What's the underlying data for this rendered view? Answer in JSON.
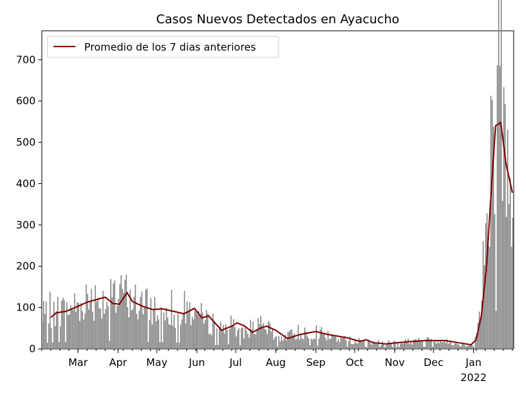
{
  "chart_data": {
    "type": "bar",
    "title": "Casos Nuevos Detectados en Ayacucho",
    "xlabel": "",
    "ylabel": "",
    "x_range": [
      "2021-02-01",
      "2022-02-01"
    ],
    "ylim": [
      0,
      770
    ],
    "y_ticks": [
      0,
      100,
      200,
      300,
      400,
      500,
      600,
      700
    ],
    "x_ticks": [
      {
        "date": "2021-03-01",
        "label": "Mar"
      },
      {
        "date": "2021-04-01",
        "label": "Apr"
      },
      {
        "date": "2021-05-01",
        "label": "May"
      },
      {
        "date": "2021-06-01",
        "label": "Jun"
      },
      {
        "date": "2021-07-01",
        "label": "Jul"
      },
      {
        "date": "2021-08-01",
        "label": "Aug"
      },
      {
        "date": "2021-09-01",
        "label": "Sep"
      },
      {
        "date": "2021-10-01",
        "label": "Oct"
      },
      {
        "date": "2021-11-01",
        "label": "Nov"
      },
      {
        "date": "2021-12-01",
        "label": "Dec"
      },
      {
        "date": "2022-01-01",
        "label": "Jan",
        "sublabel": "2022"
      }
    ],
    "grid": false,
    "legend_position": "top-left",
    "bar_color": "#808080",
    "line_color": "#800000",
    "daily_cases_breakpoints": [
      [
        "2021-02-01",
        80
      ],
      [
        "2021-02-15",
        95
      ],
      [
        "2021-03-01",
        105
      ],
      [
        "2021-03-10",
        125
      ],
      [
        "2021-03-20",
        120
      ],
      [
        "2021-03-31",
        115
      ],
      [
        "2021-04-05",
        140
      ],
      [
        "2021-04-15",
        110
      ],
      [
        "2021-04-25",
        100
      ],
      [
        "2021-05-10",
        90
      ],
      [
        "2021-05-20",
        85
      ],
      [
        "2021-05-27",
        95
      ],
      [
        "2021-06-05",
        75
      ],
      [
        "2021-06-15",
        48
      ],
      [
        "2021-06-25",
        60
      ],
      [
        "2021-07-05",
        40
      ],
      [
        "2021-07-15",
        55
      ],
      [
        "2021-07-25",
        45
      ],
      [
        "2021-08-01",
        25
      ],
      [
        "2021-08-15",
        35
      ],
      [
        "2021-08-25",
        40
      ],
      [
        "2021-09-10",
        30
      ],
      [
        "2021-09-25",
        22
      ],
      [
        "2021-10-05",
        18
      ],
      [
        "2021-10-15",
        14
      ],
      [
        "2021-11-01",
        17
      ],
      [
        "2021-11-15",
        18
      ],
      [
        "2021-12-01",
        22
      ],
      [
        "2021-12-15",
        15
      ],
      [
        "2021-12-25",
        8
      ],
      [
        "2022-01-01",
        15
      ],
      [
        "2022-01-05",
        70
      ],
      [
        "2022-01-09",
        230
      ],
      [
        "2022-01-13",
        420
      ],
      [
        "2022-01-17",
        590
      ],
      [
        "2022-01-21",
        630
      ],
      [
        "2022-01-25",
        450
      ],
      [
        "2022-01-31",
        330
      ]
    ],
    "series": [
      {
        "name": "Promedio de los 7 dias anteriores",
        "type": "line",
        "points": [
          [
            "2021-02-08",
            76
          ],
          [
            "2021-02-12",
            87
          ],
          [
            "2021-02-20",
            91
          ],
          [
            "2021-03-01",
            103
          ],
          [
            "2021-03-08",
            113
          ],
          [
            "2021-03-15",
            119
          ],
          [
            "2021-03-22",
            125
          ],
          [
            "2021-03-28",
            110
          ],
          [
            "2021-04-02",
            108
          ],
          [
            "2021-04-08",
            136
          ],
          [
            "2021-04-12",
            115
          ],
          [
            "2021-04-20",
            103
          ],
          [
            "2021-04-28",
            95
          ],
          [
            "2021-05-05",
            97
          ],
          [
            "2021-05-15",
            90
          ],
          [
            "2021-05-22",
            85
          ],
          [
            "2021-05-30",
            98
          ],
          [
            "2021-06-05",
            75
          ],
          [
            "2021-06-10",
            80
          ],
          [
            "2021-06-20",
            45
          ],
          [
            "2021-06-28",
            55
          ],
          [
            "2021-07-02",
            63
          ],
          [
            "2021-07-08",
            55
          ],
          [
            "2021-07-14",
            40
          ],
          [
            "2021-07-20",
            50
          ],
          [
            "2021-07-25",
            55
          ],
          [
            "2021-08-01",
            45
          ],
          [
            "2021-08-10",
            25
          ],
          [
            "2021-08-20",
            35
          ],
          [
            "2021-09-01",
            42
          ],
          [
            "2021-09-10",
            35
          ],
          [
            "2021-09-25",
            27
          ],
          [
            "2021-10-05",
            18
          ],
          [
            "2021-10-10",
            22
          ],
          [
            "2021-10-15",
            15
          ],
          [
            "2021-10-25",
            12
          ],
          [
            "2021-11-10",
            17
          ],
          [
            "2021-11-25",
            20
          ],
          [
            "2021-12-10",
            20
          ],
          [
            "2021-12-20",
            15
          ],
          [
            "2021-12-30",
            10
          ],
          [
            "2022-01-03",
            22
          ],
          [
            "2022-01-07",
            80
          ],
          [
            "2022-01-11",
            200
          ],
          [
            "2022-01-14",
            350
          ],
          [
            "2022-01-18",
            540
          ],
          [
            "2022-01-22",
            548
          ],
          [
            "2022-01-26",
            450
          ],
          [
            "2022-01-31",
            378
          ]
        ]
      }
    ]
  }
}
